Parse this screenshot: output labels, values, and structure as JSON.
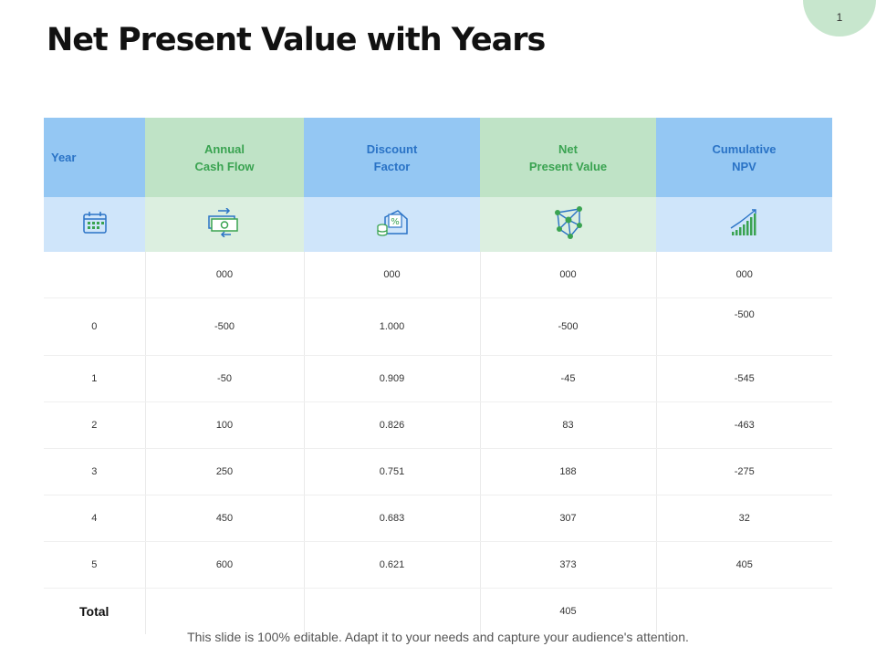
{
  "page_number": "1",
  "title": "Net Present Value with Years",
  "table": {
    "headers": {
      "year": "Year",
      "annual_line1": "Annual",
      "annual_line2": "Cash Flow",
      "discount_line1": "Discount",
      "discount_line2": "Factor",
      "net_line1": "Net",
      "net_line2": "Present Value",
      "cum_line1": "Cumulative",
      "cum_line2": "NPV"
    },
    "icons": [
      "calendar-icon",
      "cash-transfer-icon",
      "money-discount-icon",
      "network-icon",
      "growth-chart-icon"
    ],
    "units_row": [
      "",
      "000",
      "000",
      "000",
      "000"
    ],
    "rows": [
      {
        "year": "0",
        "cash_flow": "-500",
        "discount": "1.000",
        "npv": "-500",
        "cumulative": "-500"
      },
      {
        "year": "1",
        "cash_flow": "-50",
        "discount": "0.909",
        "npv": "-45",
        "cumulative": "-545"
      },
      {
        "year": "2",
        "cash_flow": "100",
        "discount": "0.826",
        "npv": "83",
        "cumulative": "-463"
      },
      {
        "year": "3",
        "cash_flow": "250",
        "discount": "0.751",
        "npv": "188",
        "cumulative": "-275"
      },
      {
        "year": "4",
        "cash_flow": "450",
        "discount": "0.683",
        "npv": "307",
        "cumulative": "32"
      },
      {
        "year": "5",
        "cash_flow": "600",
        "discount": "0.621",
        "npv": "373",
        "cumulative": "405"
      }
    ],
    "total": {
      "label": "Total",
      "npv": "405"
    }
  },
  "footer": "This slide is 100% editable. Adapt it to your needs and capture your audience's attention.",
  "colors": {
    "header_blue": "#94c7f3",
    "header_green": "#bfe3c6",
    "icon_blue": "#2a73c6",
    "icon_green": "#3aa351"
  }
}
